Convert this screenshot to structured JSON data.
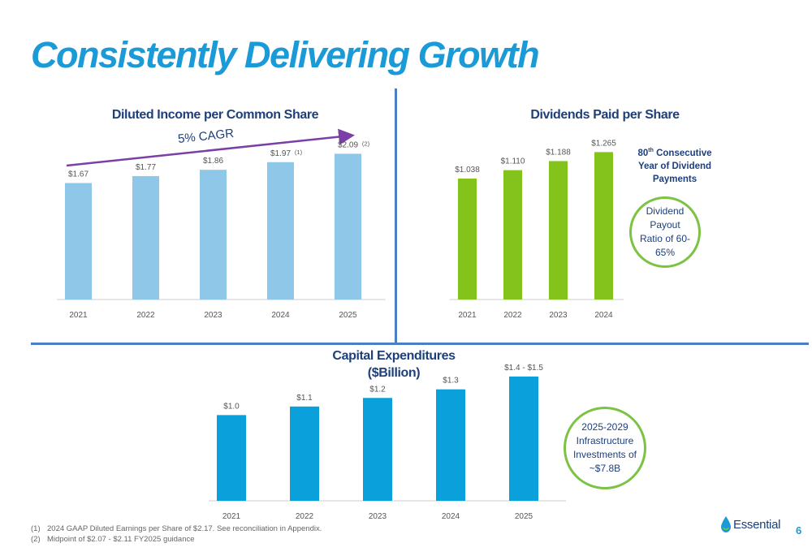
{
  "slide": {
    "title": "Consistently Delivering Growth",
    "page_number": "6",
    "logo_text": "Essential",
    "footnotes": [
      {
        "num": "(1)",
        "text": "2024 GAAP Diluted Earnings per Share of $2.17. See reconciliation in Appendix."
      },
      {
        "num": "(2)",
        "text": "Midpoint of $2.07 - $2.11 FY2025 guidance"
      }
    ]
  },
  "callouts": {
    "dividend_years": {
      "line1": "80",
      "sup": "th",
      "line1_rest": " Consecutive",
      "line2": "Year of Dividend",
      "line3": "Payments"
    },
    "payout_ratio": [
      "Dividend",
      "Payout",
      "Ratio of 60-",
      "65%"
    ],
    "capex_plan": [
      "2025-2029",
      "Infrastructure",
      "Investments of",
      "~$7.8B"
    ],
    "cagr": "5% CAGR"
  },
  "chart_data": [
    {
      "type": "bar",
      "title": "Diluted Income per Common Share",
      "categories": [
        "2021",
        "2022",
        "2023",
        "2024",
        "2025"
      ],
      "values": [
        1.67,
        1.77,
        1.86,
        1.97,
        2.09
      ],
      "labels": [
        "$1.67",
        "$1.77",
        "$1.86",
        "$1.97",
        "$2.09"
      ],
      "label_notes": [
        "",
        "",
        "",
        "(1)",
        "(2)"
      ],
      "ylim": [
        0,
        2.2
      ],
      "color": "#8ec7e8",
      "annotation": "5% CAGR"
    },
    {
      "type": "bar",
      "title": "Dividends Paid per Share",
      "categories": [
        "2021",
        "2022",
        "2023",
        "2024"
      ],
      "values": [
        1.038,
        1.11,
        1.188,
        1.265
      ],
      "labels": [
        "$1.038",
        "$1.110",
        "$1.188",
        "$1.265"
      ],
      "ylim": [
        0,
        1.4
      ],
      "color": "#84c21c"
    },
    {
      "type": "bar",
      "title": "Capital Expenditures",
      "subtitle": "($Billion)",
      "categories": [
        "2021",
        "2022",
        "2023",
        "2024",
        "2025"
      ],
      "values": [
        1.0,
        1.1,
        1.2,
        1.3,
        1.45
      ],
      "labels": [
        "$1.0",
        "$1.1",
        "$1.2",
        "$1.3",
        "$1.4 - $1.5"
      ],
      "ylim": [
        0,
        1.6
      ],
      "color": "#0aa0dc"
    }
  ]
}
